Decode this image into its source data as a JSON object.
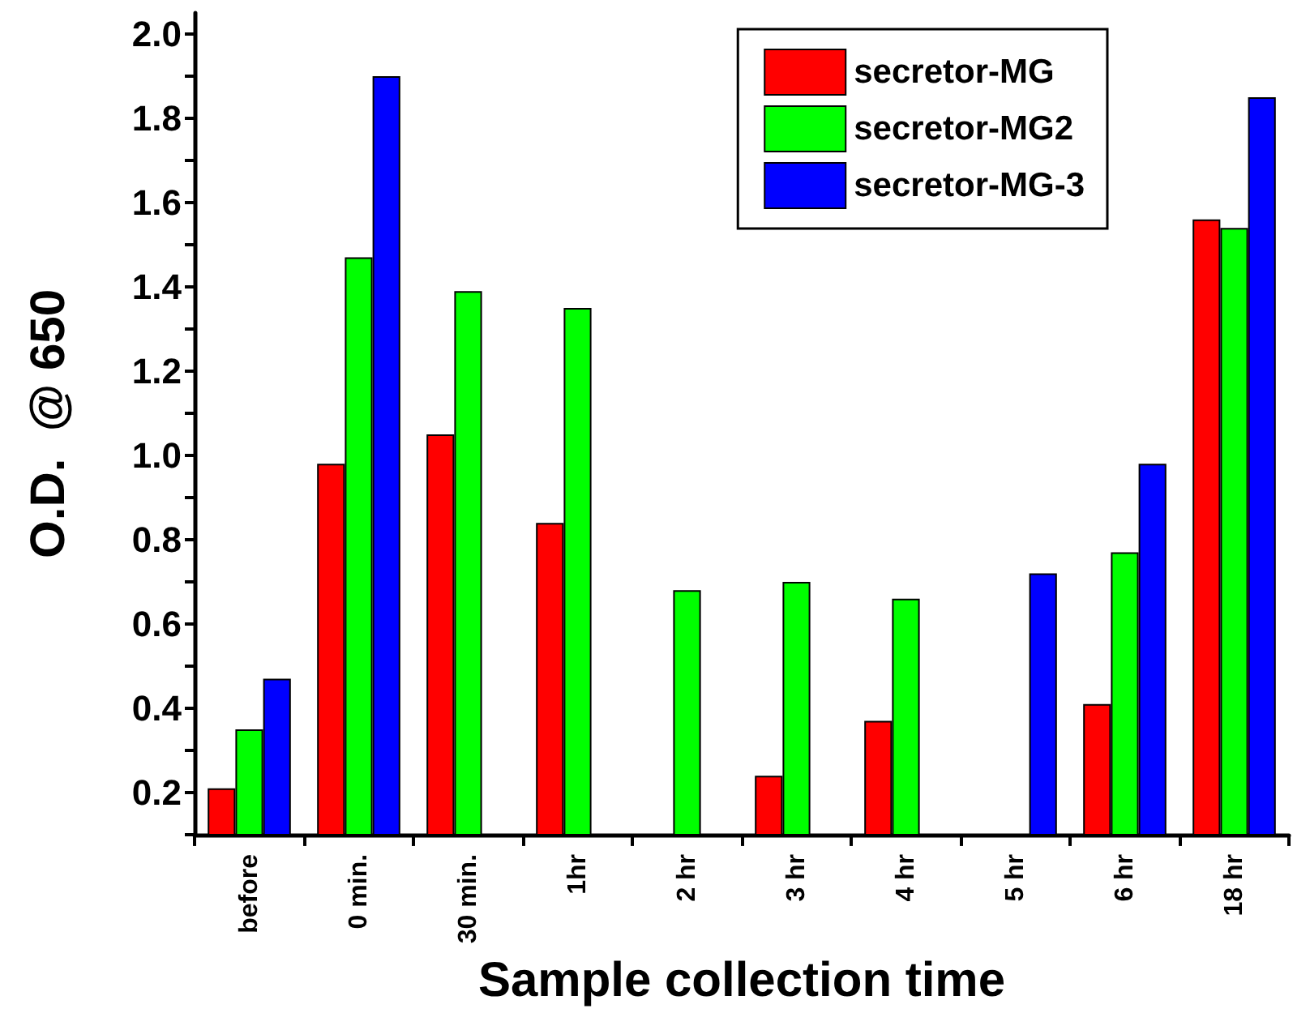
{
  "chart_data": {
    "type": "bar",
    "xlabel": "Sample collection time",
    "ylabel": "O.D.  @ 650",
    "categories": [
      "before",
      "0 min.",
      "30 min.",
      "1hr",
      "2 hr",
      "3 hr",
      "4 hr",
      "5 hr",
      "6 hr",
      "18 hr"
    ],
    "series": [
      {
        "name": "secretor-MG",
        "color": "#ff0000",
        "values": [
          0.21,
          0.98,
          1.05,
          0.84,
          null,
          0.24,
          0.37,
          null,
          0.41,
          1.56
        ]
      },
      {
        "name": "secretor-MG2",
        "color": "#00ff00",
        "values": [
          0.35,
          1.47,
          1.39,
          1.35,
          0.68,
          0.7,
          0.66,
          null,
          0.77,
          1.54
        ]
      },
      {
        "name": "secretor-MG-3",
        "color": "#0000ff",
        "values": [
          0.47,
          1.9,
          null,
          null,
          null,
          null,
          null,
          0.72,
          0.98,
          1.85
        ]
      }
    ],
    "ylim": [
      0.1,
      2.05
    ],
    "yticks": [
      {
        "value": 0.1,
        "label": null
      },
      0.2,
      {
        "value": 0.3,
        "label": null
      },
      0.4,
      {
        "value": 0.5,
        "label": null
      },
      0.6,
      {
        "value": 0.7,
        "label": null
      },
      0.8,
      {
        "value": 0.9,
        "label": null
      },
      {
        "value": 1,
        "label": "1.0"
      },
      {
        "value": 1.1,
        "label": null
      },
      1.2,
      {
        "value": 1.3,
        "label": null
      },
      1.4,
      {
        "value": 1.5,
        "label": null
      },
      1.6,
      {
        "value": 1.7,
        "label": null
      },
      1.8,
      {
        "value": 1.9,
        "label": null
      },
      {
        "value": 2,
        "label": "2.0"
      }
    ],
    "grid": false,
    "legend": "top right"
  }
}
